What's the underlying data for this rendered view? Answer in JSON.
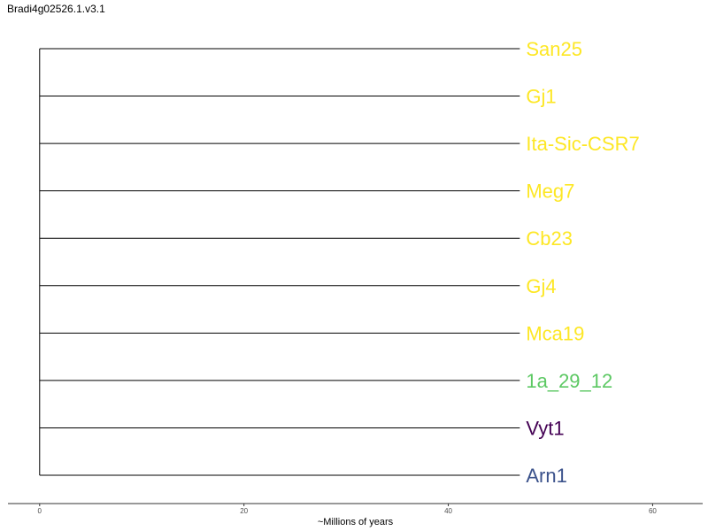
{
  "title": "Bradi4g02526.1.v3.1",
  "tree": {
    "tips": [
      {
        "name": "San25",
        "branch_length": 47,
        "color": "#FDE725"
      },
      {
        "name": "Gj1",
        "branch_length": 47,
        "color": "#FDE725"
      },
      {
        "name": "Ita-Sic-CSR7",
        "branch_length": 47,
        "color": "#FDE725"
      },
      {
        "name": "Meg7",
        "branch_length": 47,
        "color": "#FDE725"
      },
      {
        "name": "Cb23",
        "branch_length": 47,
        "color": "#FDE725"
      },
      {
        "name": "Gj4",
        "branch_length": 47,
        "color": "#FDE725"
      },
      {
        "name": "Mca19",
        "branch_length": 47,
        "color": "#FDE725"
      },
      {
        "name": "1a_29_12",
        "branch_length": 47,
        "color": "#5CC863"
      },
      {
        "name": "Vyt1",
        "branch_length": 47,
        "color": "#440154"
      },
      {
        "name": "Arn1",
        "branch_length": 47,
        "color": "#3B528B"
      }
    ],
    "line_color": "#000000"
  },
  "axis": {
    "label": "~Millions of years",
    "ticks": [
      "0",
      "20",
      "40",
      "60"
    ],
    "range": [
      -3.1,
      64.9
    ]
  }
}
